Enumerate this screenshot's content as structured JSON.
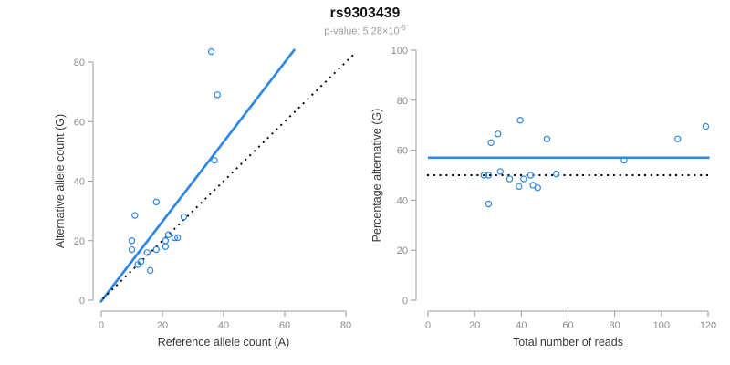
{
  "header": {
    "title": "rs9303439",
    "subtitle_base": "p-value: 5.28×10",
    "subtitle_exponent": "-5"
  },
  "colors": {
    "accent_blue": "#2d87e6",
    "line_black": "#000000",
    "axis_gray": "#9a9a9a",
    "tick_label_gray": "#8c8c8c",
    "axis_title_dark": "#383838",
    "title_color": "#111111",
    "subtitle_gray": "#9c9c9c",
    "background": "#ffffff"
  },
  "chart_data": [
    {
      "type": "scatter",
      "name": "allele-count-scatter",
      "xlabel": "Reference allele count (A)",
      "ylabel": "Alternative allele count (G)",
      "xlim": [
        0,
        80
      ],
      "ylim": [
        0,
        80
      ],
      "xticks": [
        0,
        20,
        40,
        60,
        80
      ],
      "yticks": [
        0,
        20,
        40,
        60,
        80
      ],
      "grid": false,
      "legend": "none",
      "points": [
        [
          36,
          83.5
        ],
        [
          38,
          69
        ],
        [
          37,
          47
        ],
        [
          18,
          33
        ],
        [
          11,
          28.5
        ],
        [
          27,
          28
        ],
        [
          22,
          22
        ],
        [
          24,
          21
        ],
        [
          25,
          21
        ],
        [
          21,
          20
        ],
        [
          10,
          20
        ],
        [
          10,
          17
        ],
        [
          21,
          18
        ],
        [
          15,
          16
        ],
        [
          18,
          17
        ],
        [
          13,
          13
        ],
        [
          12,
          12
        ],
        [
          16,
          10
        ]
      ],
      "lines": [
        {
          "name": "fitted-line",
          "style": "solid",
          "color": "#2d87e6",
          "width": 2.7,
          "from": [
            -0.3,
            -0.7
          ],
          "to": [
            63.3,
            84.3
          ]
        },
        {
          "name": "identity-line",
          "style": "dotted",
          "color": "#000000",
          "width": 1.9,
          "from": [
            0.5,
            0.5
          ],
          "to": [
            83,
            83
          ]
        }
      ]
    },
    {
      "type": "scatter",
      "name": "percentage-scatter",
      "xlabel": "Total number of reads",
      "ylabel": "Percentage alternative (G)",
      "xlim": [
        0,
        120
      ],
      "ylim": [
        0,
        100
      ],
      "xticks": [
        0,
        20,
        40,
        60,
        80,
        100,
        120
      ],
      "yticks": [
        0,
        20,
        40,
        60,
        80,
        100
      ],
      "grid": false,
      "legend": "none",
      "points": [
        [
          24,
          50
        ],
        [
          26,
          50
        ],
        [
          26,
          38.5
        ],
        [
          27,
          63
        ],
        [
          30,
          66.5
        ],
        [
          31,
          51.5
        ],
        [
          35,
          48.5
        ],
        [
          39,
          45.5
        ],
        [
          39.5,
          72
        ],
        [
          41,
          48.5
        ],
        [
          44,
          50
        ],
        [
          45,
          46
        ],
        [
          47,
          45
        ],
        [
          51,
          64.5
        ],
        [
          55,
          50.5
        ],
        [
          84,
          56
        ],
        [
          107,
          64.5
        ],
        [
          119,
          69.5
        ]
      ],
      "lines": [
        {
          "name": "fitted-percentage-line",
          "style": "solid",
          "color": "#2d87e6",
          "width": 2.7,
          "from": [
            0,
            57
          ],
          "to": [
            120.6,
            57
          ]
        },
        {
          "name": "fifty-percent-line",
          "style": "dotted",
          "color": "#000000",
          "width": 1.9,
          "from": [
            -0.4,
            50
          ],
          "to": [
            120.6,
            50
          ]
        }
      ]
    }
  ]
}
